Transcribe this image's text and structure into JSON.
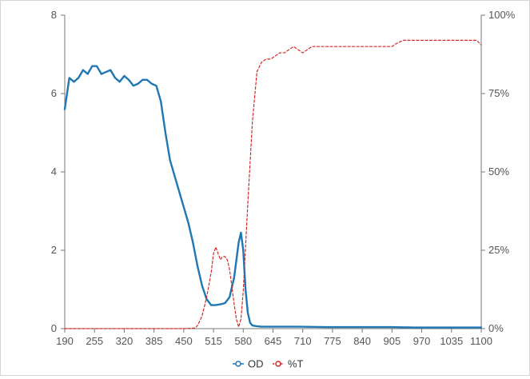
{
  "chart_data": {
    "type": "line",
    "title": "",
    "xlabel": "",
    "ylabel_left": "",
    "ylabel_right": "",
    "xlim": [
      190,
      1100
    ],
    "ylim_left": [
      0,
      8
    ],
    "ylim_right": [
      0,
      100
    ],
    "x_ticks": [
      190,
      255,
      320,
      385,
      450,
      515,
      580,
      645,
      710,
      775,
      840,
      905,
      970,
      1035,
      1100
    ],
    "y_left_ticks": [
      0,
      2,
      4,
      6,
      8
    ],
    "y_right_ticks": [
      0,
      25,
      50,
      75,
      100
    ],
    "y_right_tick_labels": [
      "0%",
      "25%",
      "50%",
      "75%",
      "100%"
    ],
    "grid": false,
    "legend_position": "bottom-center",
    "series": [
      {
        "name": "OD",
        "axis": "left",
        "color": "#1f77b4",
        "style": "solid",
        "marker": "circle",
        "x": [
          190,
          200,
          210,
          220,
          230,
          240,
          250,
          260,
          270,
          280,
          290,
          300,
          310,
          320,
          330,
          340,
          350,
          360,
          370,
          380,
          390,
          400,
          410,
          420,
          430,
          440,
          450,
          460,
          470,
          480,
          490,
          500,
          510,
          520,
          530,
          540,
          550,
          560,
          570,
          575,
          580,
          585,
          590,
          595,
          600,
          610,
          620,
          630,
          640,
          660,
          700,
          760,
          850,
          905,
          950,
          1000,
          1050,
          1100
        ],
        "values": [
          5.6,
          6.4,
          6.3,
          6.4,
          6.6,
          6.5,
          6.7,
          6.7,
          6.5,
          6.55,
          6.6,
          6.4,
          6.3,
          6.45,
          6.35,
          6.2,
          6.25,
          6.35,
          6.35,
          6.25,
          6.2,
          5.8,
          5.0,
          4.3,
          3.9,
          3.5,
          3.1,
          2.7,
          2.2,
          1.6,
          1.1,
          0.75,
          0.6,
          0.6,
          0.62,
          0.65,
          0.8,
          1.3,
          2.2,
          2.45,
          2.0,
          1.0,
          0.4,
          0.15,
          0.08,
          0.06,
          0.05,
          0.05,
          0.05,
          0.05,
          0.05,
          0.04,
          0.04,
          0.04,
          0.03,
          0.03,
          0.03,
          0.03
        ]
      },
      {
        "name": "%T",
        "axis": "right",
        "color": "#d62728",
        "style": "dashed",
        "marker": "circle",
        "x": [
          190,
          300,
          400,
          450,
          475,
          480,
          490,
          500,
          510,
          515,
          520,
          525,
          530,
          535,
          540,
          545,
          550,
          560,
          565,
          570,
          575,
          580,
          590,
          600,
          610,
          620,
          630,
          640,
          650,
          660,
          670,
          680,
          690,
          700,
          710,
          720,
          730,
          760,
          800,
          850,
          900,
          905,
          915,
          930,
          950,
          1000,
          1050,
          1080,
          1090,
          1100
        ],
        "values": [
          0,
          0,
          0,
          0,
          0.2,
          1,
          4,
          10,
          18,
          24,
          26,
          24,
          22,
          23,
          23,
          22,
          19,
          8,
          3,
          0.5,
          3,
          12,
          40,
          66,
          82,
          85,
          86,
          86,
          87,
          88,
          88,
          89,
          90,
          89,
          88,
          89,
          90,
          90,
          90,
          90,
          90,
          90,
          91,
          92,
          92,
          92,
          92,
          92,
          92,
          90.5
        ]
      }
    ]
  }
}
